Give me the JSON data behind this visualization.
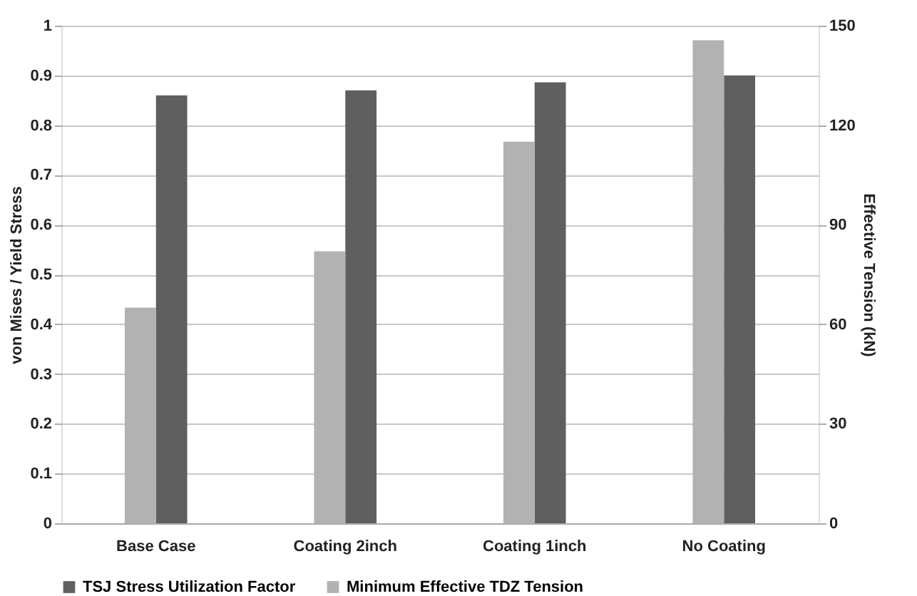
{
  "chart_data": {
    "type": "bar",
    "ylabel": "von Mises / Yield Stress",
    "y2label": "Effective Tension (kN)",
    "categories": [
      "Base Case",
      "Coating 2inch",
      "Coating 1inch",
      "No Coating"
    ],
    "series": [
      {
        "name": "TSJ Stress Utilization Factor",
        "color": "#5f5f5f",
        "values": [
          0.86,
          0.87,
          0.886,
          0.9
        ]
      },
      {
        "name": "Minimum Effective TDZ Tension",
        "color": "#b2b2b2",
        "axis": "y2",
        "values": [
          65,
          82,
          115,
          145.6
        ]
      }
    ],
    "ylim": [
      0,
      1
    ],
    "yticks": [
      0,
      0.1,
      0.2,
      0.3,
      0.4,
      0.5,
      0.6,
      0.7,
      0.8,
      0.9,
      1
    ],
    "y2lim": [
      0,
      150
    ],
    "y2ticks": [
      0,
      30,
      60,
      90,
      120,
      150
    ],
    "grid": "y",
    "legend": "bottom"
  }
}
